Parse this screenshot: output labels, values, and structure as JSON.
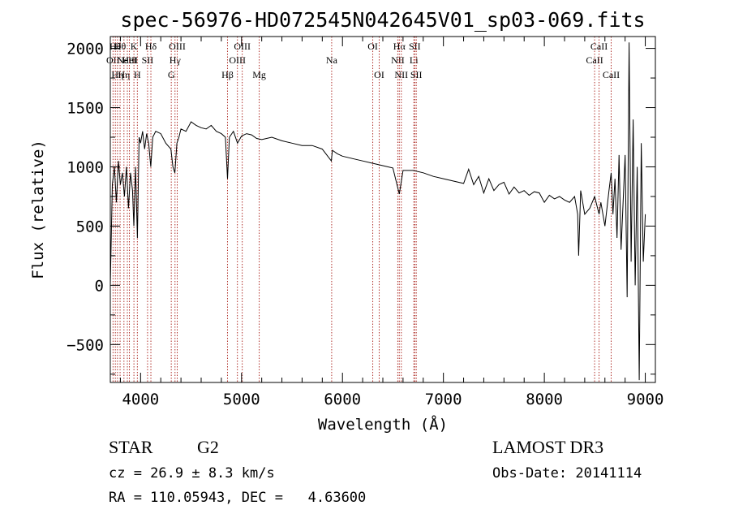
{
  "chart_data": {
    "type": "line",
    "title": "spec-56976-HD072545N042645V01_sp03-069.fits",
    "xlabel": "Wavelength (Å)",
    "ylabel": "Flux (relative)",
    "xlim": [
      3700,
      9100
    ],
    "ylim": [
      -820,
      2100
    ],
    "x_ticks": [
      4000,
      5000,
      6000,
      7000,
      8000,
      9000
    ],
    "x_tick_labels": [
      "4000",
      "5000",
      "6000",
      "7000",
      "8000",
      "9000"
    ],
    "y_ticks": [
      -500,
      0,
      500,
      1000,
      1500,
      2000
    ],
    "y_tick_labels": [
      "−500",
      "0",
      "500",
      "1000",
      "1500",
      "2000"
    ],
    "series": [
      {
        "x": [
          3700,
          3720,
          3740,
          3760,
          3780,
          3800,
          3820,
          3840,
          3860,
          3880,
          3900,
          3920,
          3933,
          3950,
          3968,
          3985,
          4000,
          4020,
          4040,
          4060,
          4080,
          4101,
          4120,
          4150,
          4200,
          4250,
          4300,
          4320,
          4340,
          4360,
          4380,
          4400,
          4450,
          4500,
          4550,
          4600,
          4650,
          4700,
          4750,
          4800,
          4840,
          4861,
          4880,
          4920,
          4960,
          5000,
          5050,
          5100,
          5150,
          5200,
          5300,
          5400,
          5500,
          5600,
          5700,
          5800,
          5890,
          5900,
          5950,
          6000,
          6100,
          6200,
          6300,
          6400,
          6500,
          6563,
          6600,
          6700,
          6800,
          6900,
          7000,
          7100,
          7200,
          7250,
          7300,
          7350,
          7400,
          7450,
          7500,
          7550,
          7600,
          7650,
          7700,
          7750,
          7800,
          7850,
          7900,
          7950,
          8000,
          8050,
          8100,
          8150,
          8200,
          8250,
          8300,
          8330,
          8340,
          8360,
          8380,
          8400,
          8450,
          8498,
          8542,
          8560,
          8600,
          8640,
          8662,
          8680,
          8700,
          8720,
          8740,
          8760,
          8780,
          8800,
          8820,
          8840,
          8860,
          8880,
          8900,
          8920,
          8940,
          8960,
          8980,
          9000
        ],
        "y": [
          0,
          850,
          1000,
          700,
          1050,
          850,
          950,
          750,
          1000,
          650,
          950,
          800,
          500,
          1000,
          400,
          1250,
          1200,
          1300,
          1150,
          1280,
          1200,
          1000,
          1250,
          1300,
          1280,
          1200,
          1150,
          1000,
          950,
          1200,
          1250,
          1320,
          1300,
          1380,
          1350,
          1330,
          1320,
          1350,
          1300,
          1280,
          1250,
          900,
          1250,
          1300,
          1200,
          1260,
          1280,
          1270,
          1240,
          1230,
          1250,
          1220,
          1200,
          1180,
          1180,
          1150,
          1050,
          1140,
          1110,
          1090,
          1070,
          1050,
          1030,
          1010,
          990,
          770,
          970,
          970,
          950,
          920,
          900,
          880,
          860,
          980,
          850,
          920,
          780,
          900,
          800,
          850,
          870,
          770,
          830,
          780,
          800,
          760,
          790,
          780,
          700,
          760,
          730,
          750,
          720,
          700,
          750,
          600,
          250,
          800,
          700,
          600,
          650,
          750,
          600,
          700,
          500,
          800,
          950,
          600,
          900,
          400,
          1100,
          300,
          700,
          1100,
          -100,
          2050,
          200,
          1400,
          0,
          1000,
          -800,
          1200,
          200,
          600
        ]
      }
    ],
    "lines": [
      {
        "x": 3727,
        "label": "OII",
        "row": 2
      },
      {
        "x": 3750,
        "label": "Hθ",
        "row": 1
      },
      {
        "x": 3771,
        "label": "Hη",
        "row": 3
      },
      {
        "x": 3797,
        "label": "Hθ",
        "row": 1
      },
      {
        "x": 3835,
        "label": "Hη",
        "row": 3
      },
      {
        "x": 3869,
        "label": "NeIII",
        "row": 2
      },
      {
        "x": 3889,
        "label": "HeI",
        "row": 2
      },
      {
        "x": 3934,
        "label": "K",
        "row": 1
      },
      {
        "x": 3968,
        "label": "H",
        "row": 3
      },
      {
        "x": 4069,
        "label": "SII",
        "row": 2
      },
      {
        "x": 4102,
        "label": "Hδ",
        "row": 1
      },
      {
        "x": 4304,
        "label": "G",
        "row": 3
      },
      {
        "x": 4341,
        "label": "Hγ",
        "row": 2
      },
      {
        "x": 4363,
        "label": "OIII",
        "row": 1
      },
      {
        "x": 4861,
        "label": "Hβ",
        "row": 3
      },
      {
        "x": 4959,
        "label": "OIII",
        "row": 2
      },
      {
        "x": 5007,
        "label": "OIII",
        "row": 1
      },
      {
        "x": 5175,
        "label": "Mg",
        "row": 3
      },
      {
        "x": 5893,
        "label": "Na",
        "row": 2
      },
      {
        "x": 6300,
        "label": "OI",
        "row": 1
      },
      {
        "x": 6364,
        "label": "OI",
        "row": 3
      },
      {
        "x": 6548,
        "label": "NII",
        "row": 2
      },
      {
        "x": 6563,
        "label": "Hα",
        "row": 1
      },
      {
        "x": 6583,
        "label": "NII",
        "row": 3
      },
      {
        "x": 6707,
        "label": "Li",
        "row": 2
      },
      {
        "x": 6716,
        "label": "SII",
        "row": 1
      },
      {
        "x": 6731,
        "label": "SII",
        "row": 3
      },
      {
        "x": 8498,
        "label": "CaII",
        "row": 2
      },
      {
        "x": 8542,
        "label": "CaII",
        "row": 1
      },
      {
        "x": 8662,
        "label": "CaII",
        "row": 3
      }
    ],
    "line_color": "#b0302a",
    "spectrum_color": "#000000"
  },
  "info": {
    "object_class": "STAR",
    "subclass": "G2",
    "survey": "LAMOST DR3",
    "redshift": "cz = 26.9 ± 8.3 km/s",
    "obs_date": "Obs-Date: 20141114",
    "coords": "RA = 110.05943, DEC =   4.63600"
  }
}
